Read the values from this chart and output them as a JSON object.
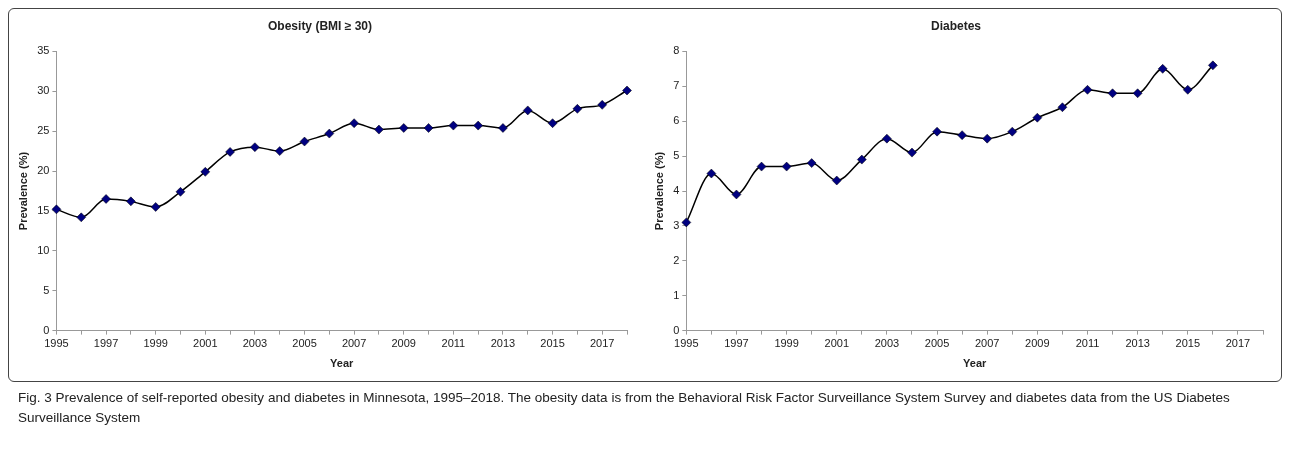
{
  "chart_data": [
    {
      "type": "line",
      "title": "Obesity (BMI ≥ 30)",
      "xlabel": "Year",
      "ylabel": "Prevalence (%)",
      "categories": [
        "1995",
        null,
        "1997",
        null,
        "1999",
        null,
        "2001",
        null,
        "2003",
        null,
        "2005",
        null,
        "2007",
        null,
        "2009",
        null,
        "2011",
        null,
        "2013",
        null,
        "2015",
        null,
        "2017",
        null
      ],
      "series": [
        {
          "color": "#000000",
          "values": [
            15.2,
            14.2,
            16.5,
            16.2,
            15.5,
            17.4,
            19.9,
            22.4,
            23.0,
            22.5,
            23.7,
            24.7,
            26.0,
            25.2,
            25.4,
            25.4,
            25.7,
            25.7,
            25.4,
            27.6,
            26.0,
            27.8,
            28.3,
            30.1
          ]
        }
      ],
      "ylim": [
        0,
        35
      ],
      "yticks": [
        0,
        5,
        10,
        15,
        20,
        25,
        30,
        35
      ],
      "marker": "diamond",
      "legend": false,
      "annotations": [
        "Fig. 3 Prevalence of self-reported obesity and diabetes in Minnesota, 1995–2018. The obesity  data is from the Behavioral Risk Factor Surveillance System Survey and diabetes data from the US Diabetes Surveillance System"
      ]
    },
    {
      "type": "line",
      "title": "Diabetes",
      "xlabel": "Year",
      "ylabel": "Prevalence (%)",
      "categories": [
        "1995",
        null,
        "1997",
        null,
        "1999",
        null,
        "2001",
        null,
        "2003",
        null,
        "2005",
        null,
        "2007",
        null,
        "2009",
        null,
        "2011",
        null,
        "2013",
        null,
        "2015",
        null,
        "2017",
        null
      ],
      "series": [
        {
          "color": "#000000",
          "values": [
            3.1,
            4.5,
            3.9,
            4.7,
            4.7,
            4.8,
            4.3,
            4.9,
            5.5,
            5.1,
            5.7,
            5.6,
            5.5,
            5.7,
            6.1,
            6.4,
            6.9,
            6.8,
            6.8,
            7.5,
            6.9,
            7.6,
            null,
            null
          ]
        }
      ],
      "ylim": [
        0,
        8
      ],
      "yticks": [
        0,
        1,
        2,
        3,
        4,
        5,
        6,
        7,
        8
      ],
      "marker": "diamond",
      "legend": false
    }
  ]
}
